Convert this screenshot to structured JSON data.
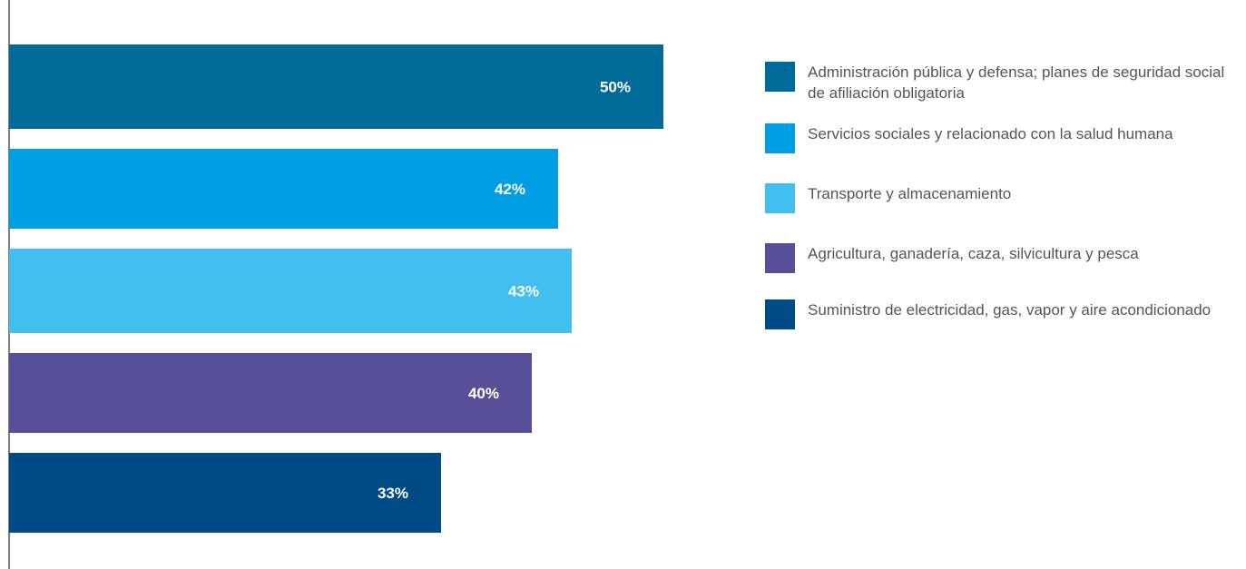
{
  "chart_data": {
    "type": "bar",
    "orientation": "horizontal",
    "categories": [
      "Administración pública y defensa; planes de seguridad social de afiliación obligatoria",
      "Servicios sociales y relacionado con la salud humana",
      "Transporte y almacenamiento",
      "Agricultura, ganadería, caza, silvicultura y pesca",
      "Suministro de electricidad, gas, vapor y aire acondicionado"
    ],
    "values": [
      50,
      42,
      43,
      40,
      33
    ],
    "value_labels": [
      "50%",
      "42%",
      "43%",
      "40%",
      "33%"
    ],
    "colors": [
      "#006b99",
      "#009fe3",
      "#42bfee",
      "#575099",
      "#004b85"
    ],
    "legend_position": "right",
    "grid": false,
    "xlim": [
      0,
      51
    ]
  },
  "legend": {
    "items": [
      {
        "label": "Administración pública y defensa; planes de seguridad social de afiliación obligatoria",
        "color": "#006b99"
      },
      {
        "label": "Servicios sociales y relacionado con la salud humana",
        "color": "#009fe3"
      },
      {
        "label": "Transporte y almacenamiento",
        "color": "#42bfee"
      },
      {
        "label": "Agricultura, ganadería, caza, silvicultura y pesca",
        "color": "#575099"
      },
      {
        "label": "Suministro de electricidad, gas, vapor y aire acondicionado",
        "color": "#004b85"
      }
    ]
  },
  "colors": {
    "axis": "#555555",
    "legend_text": "#555555",
    "bar_label": "#ffffff"
  }
}
